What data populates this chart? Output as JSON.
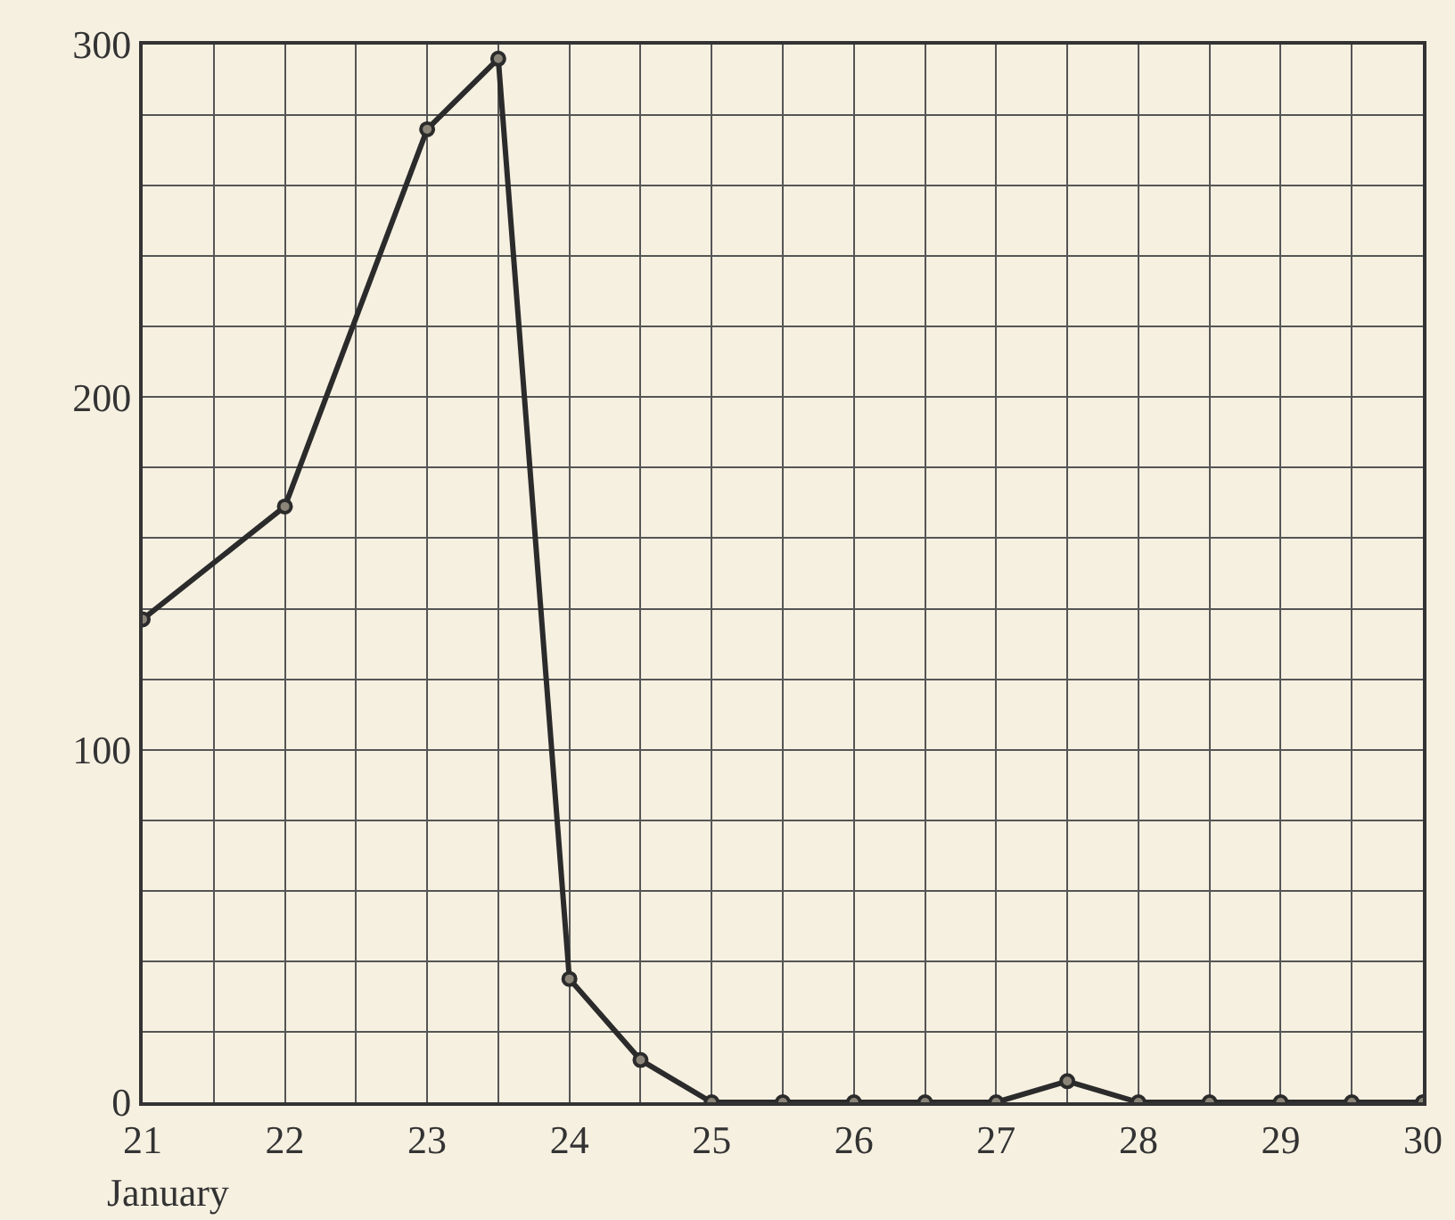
{
  "chart_data": {
    "type": "line",
    "xlabel": "January",
    "x": [
      21,
      22,
      23,
      23.5,
      24,
      24.5,
      25,
      25.5,
      26,
      26.5,
      27,
      27.5,
      28,
      28.5,
      29,
      29.5,
      30
    ],
    "series": [
      {
        "color": "#2b2b2b",
        "values": [
          137,
          169,
          276,
          296,
          35,
          12,
          0,
          0,
          0,
          0,
          0,
          6,
          0,
          0,
          0,
          0,
          0
        ]
      }
    ],
    "xlim": [
      21,
      30
    ],
    "xticks": [
      21,
      {
        "value": 21.5,
        "label": null
      },
      22,
      {
        "value": 22.5,
        "label": null
      },
      23,
      {
        "value": 23.5,
        "label": null
      },
      24,
      {
        "value": 24.5,
        "label": null
      },
      25,
      {
        "value": 25.5,
        "label": null
      },
      26,
      {
        "value": 26.5,
        "label": null
      },
      27,
      {
        "value": 27.5,
        "label": null
      },
      28,
      {
        "value": 28.5,
        "label": null
      },
      29,
      {
        "value": 29.5,
        "label": null
      },
      30
    ],
    "ylim": [
      0,
      300
    ],
    "yticks": [
      0,
      {
        "value": 20,
        "label": null
      },
      {
        "value": 40,
        "label": null
      },
      {
        "value": 60,
        "label": null
      },
      {
        "value": 80,
        "label": null
      },
      100,
      {
        "value": 120,
        "label": null
      },
      {
        "value": 140,
        "label": null
      },
      {
        "value": 160,
        "label": null
      },
      {
        "value": 180,
        "label": null
      },
      200,
      {
        "value": 220,
        "label": null
      },
      {
        "value": 240,
        "label": null
      },
      {
        "value": 260,
        "label": null
      },
      {
        "value": 280,
        "label": null
      },
      300
    ],
    "grid": true,
    "marker": "circle",
    "line_style": "solid",
    "legend": false
  }
}
